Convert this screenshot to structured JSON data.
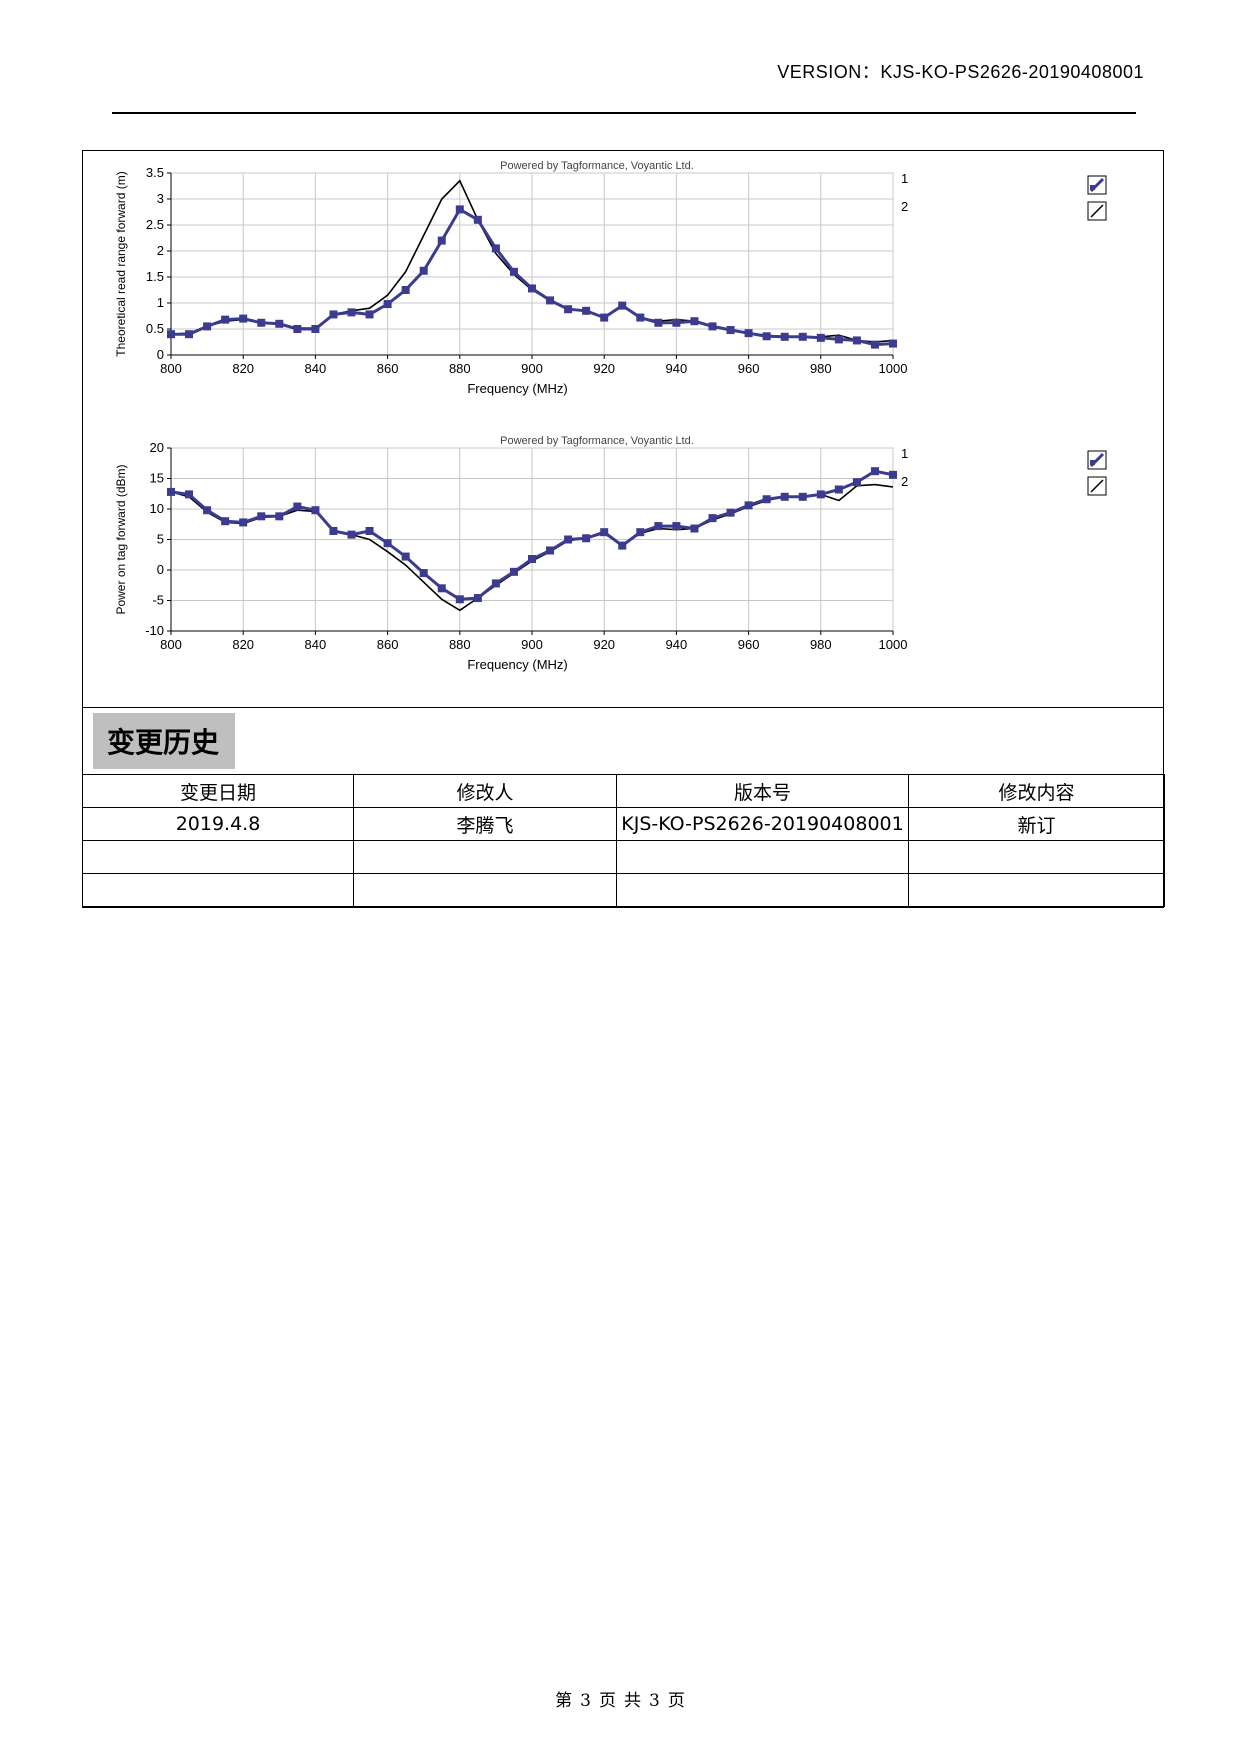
{
  "header": {
    "version_label": "VERSION：",
    "version_value": "KJS-KO-PS2626-20190408001"
  },
  "charts": {
    "powered_by": "Powered by Tagformance, Voyantic Ltd.",
    "series_1_label": "1",
    "series_2_label": "2",
    "series_1_color": "#3b3b8f",
    "series_2_color": "#000000"
  },
  "chart_data": [
    {
      "type": "line",
      "title": "Powered by Tagformance, Voyantic Ltd.",
      "xlabel": "Frequency (MHz)",
      "ylabel": "Theoretical read range forward (m)",
      "xlim": [
        800,
        1000
      ],
      "ylim": [
        0,
        3.5
      ],
      "xticks": [
        800,
        820,
        840,
        860,
        880,
        900,
        920,
        940,
        960,
        980,
        1000
      ],
      "yticks": [
        0,
        0.5,
        1,
        1.5,
        2,
        2.5,
        3,
        3.5
      ],
      "ytick_labels": [
        "0",
        "0.5",
        "1",
        "1.5",
        "2",
        "2.5",
        "3",
        "3.5"
      ],
      "series": [
        {
          "name": "1",
          "markers": true,
          "x": [
            800,
            805,
            810,
            815,
            820,
            825,
            830,
            835,
            840,
            845,
            850,
            855,
            860,
            865,
            870,
            875,
            880,
            885,
            890,
            895,
            900,
            905,
            910,
            915,
            920,
            925,
            930,
            935,
            940,
            945,
            950,
            955,
            960,
            965,
            970,
            975,
            980,
            985,
            990,
            995,
            1000
          ],
          "y": [
            0.4,
            0.4,
            0.55,
            0.68,
            0.7,
            0.62,
            0.6,
            0.5,
            0.5,
            0.78,
            0.82,
            0.78,
            0.98,
            1.25,
            1.62,
            2.2,
            2.8,
            2.6,
            2.05,
            1.6,
            1.28,
            1.05,
            0.88,
            0.85,
            0.72,
            0.95,
            0.72,
            0.62,
            0.62,
            0.65,
            0.55,
            0.48,
            0.42,
            0.36,
            0.35,
            0.35,
            0.33,
            0.3,
            0.28,
            0.2,
            0.22
          ]
        },
        {
          "name": "2",
          "markers": false,
          "x": [
            800,
            805,
            810,
            815,
            820,
            825,
            830,
            835,
            840,
            845,
            850,
            855,
            860,
            865,
            870,
            875,
            880,
            885,
            890,
            895,
            900,
            905,
            910,
            915,
            920,
            925,
            930,
            935,
            940,
            945,
            950,
            955,
            960,
            965,
            970,
            975,
            980,
            985,
            990,
            995,
            1000
          ],
          "y": [
            0.4,
            0.42,
            0.55,
            0.65,
            0.68,
            0.62,
            0.6,
            0.52,
            0.52,
            0.78,
            0.85,
            0.9,
            1.15,
            1.6,
            2.3,
            3.0,
            3.35,
            2.6,
            1.95,
            1.55,
            1.25,
            1.05,
            0.88,
            0.85,
            0.72,
            0.95,
            0.72,
            0.65,
            0.68,
            0.65,
            0.55,
            0.48,
            0.42,
            0.38,
            0.35,
            0.35,
            0.35,
            0.38,
            0.28,
            0.25,
            0.28
          ]
        }
      ]
    },
    {
      "type": "line",
      "title": "Powered by Tagformance, Voyantic Ltd.",
      "xlabel": "Frequency (MHz)",
      "ylabel": "Power on tag forward (dBm)",
      "xlim": [
        800,
        1000
      ],
      "ylim": [
        -10,
        20
      ],
      "xticks": [
        800,
        820,
        840,
        860,
        880,
        900,
        920,
        940,
        960,
        980,
        1000
      ],
      "yticks": [
        -10,
        -5,
        0,
        5,
        10,
        15,
        20
      ],
      "ytick_labels": [
        "-10",
        "-5",
        "0",
        "5",
        "10",
        "15",
        "20"
      ],
      "series": [
        {
          "name": "1",
          "markers": true,
          "x": [
            800,
            805,
            810,
            815,
            820,
            825,
            830,
            835,
            840,
            845,
            850,
            855,
            860,
            865,
            870,
            875,
            880,
            885,
            890,
            895,
            900,
            905,
            910,
            915,
            920,
            925,
            930,
            935,
            940,
            945,
            950,
            955,
            960,
            965,
            970,
            975,
            980,
            985,
            990,
            995,
            1000
          ],
          "y": [
            12.8,
            12.4,
            9.8,
            8.0,
            7.8,
            8.8,
            8.8,
            10.4,
            9.8,
            6.4,
            5.8,
            6.4,
            4.4,
            2.2,
            -0.5,
            -3.0,
            -4.8,
            -4.6,
            -2.2,
            -0.3,
            1.8,
            3.2,
            5.0,
            5.2,
            6.2,
            4.0,
            6.2,
            7.2,
            7.2,
            6.8,
            8.5,
            9.4,
            10.6,
            11.6,
            12.0,
            12.0,
            12.4,
            13.2,
            14.4,
            16.2,
            15.6
          ]
        },
        {
          "name": "2",
          "markers": false,
          "x": [
            800,
            805,
            810,
            815,
            820,
            825,
            830,
            835,
            840,
            845,
            850,
            855,
            860,
            865,
            870,
            875,
            880,
            885,
            890,
            895,
            900,
            905,
            910,
            915,
            920,
            925,
            930,
            935,
            940,
            945,
            950,
            955,
            960,
            965,
            970,
            975,
            980,
            985,
            990,
            995,
            1000
          ],
          "y": [
            12.8,
            12.0,
            9.5,
            7.8,
            7.6,
            8.6,
            8.8,
            9.8,
            9.6,
            6.4,
            5.8,
            5.0,
            3.0,
            0.8,
            -2.0,
            -4.8,
            -6.6,
            -4.6,
            -2.5,
            -0.5,
            1.5,
            3.0,
            4.8,
            5.2,
            6.0,
            4.0,
            6.0,
            6.8,
            6.6,
            6.8,
            8.2,
            9.2,
            10.4,
            11.4,
            12.0,
            12.0,
            12.4,
            11.4,
            13.8,
            14.0,
            13.6
          ]
        }
      ]
    }
  ],
  "history": {
    "title": "变更历史",
    "columns": [
      "变更日期",
      "修改人",
      "版本号",
      "修改内容"
    ],
    "rows": [
      [
        "2019.4.8",
        "李腾飞",
        "KJS-KO-PS2626-20190408001",
        "新订"
      ],
      [
        "",
        "",
        "",
        ""
      ],
      [
        "",
        "",
        "",
        ""
      ]
    ]
  },
  "footer": {
    "prefix": "第",
    "page": "3",
    "middle1": "页",
    "middle2": "共",
    "total": "3",
    "suffix": "页"
  }
}
